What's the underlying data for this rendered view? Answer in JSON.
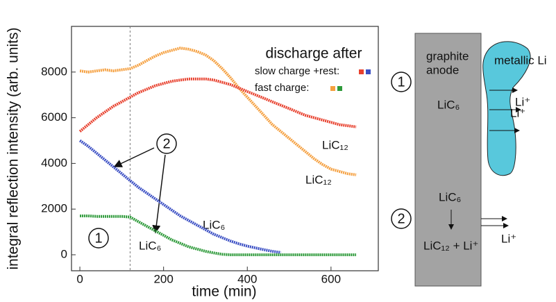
{
  "chart_data": {
    "type": "line",
    "xlabel": "time (min)",
    "ylabel": "integral reflection intensity (arb. units)",
    "xlim": [
      -20,
      713
    ],
    "ylim": [
      -700,
      10000
    ],
    "xticks": [
      0,
      200,
      400,
      600
    ],
    "yticks": [
      0,
      2000,
      4000,
      6000,
      8000
    ],
    "reference_line_x": 120,
    "x": [
      0,
      20,
      40,
      60,
      80,
      100,
      120,
      140,
      160,
      180,
      200,
      220,
      240,
      260,
      280,
      300,
      320,
      340,
      360,
      380,
      400,
      420,
      440,
      460,
      480,
      500,
      520,
      540,
      560,
      580,
      600,
      620,
      640,
      660
    ],
    "series": [
      {
        "color": "#f5a040",
        "values": [
          8050,
          8000,
          8050,
          8100,
          8050,
          8100,
          8150,
          8300,
          8500,
          8700,
          8850,
          8950,
          9050,
          9000,
          8900,
          8750,
          8500,
          8150,
          7750,
          7300,
          6900,
          6500,
          6100,
          5700,
          5400,
          5100,
          4800,
          4500,
          4200,
          3950,
          3750,
          3650,
          3550,
          3500
        ]
      },
      {
        "color": "#e8412e",
        "values": [
          5400,
          5700,
          6000,
          6250,
          6500,
          6700,
          6900,
          7100,
          7250,
          7400,
          7500,
          7600,
          7650,
          7700,
          7700,
          7700,
          7650,
          7550,
          7450,
          7300,
          7150,
          7000,
          6850,
          6700,
          6550,
          6400,
          6250,
          6100,
          6000,
          5900,
          5800,
          5700,
          5650,
          5600
        ]
      },
      {
        "color": "#3b4fc4",
        "values": [
          5000,
          4750,
          4450,
          4150,
          3850,
          3550,
          3250,
          2950,
          2700,
          2450,
          2200,
          1950,
          1700,
          1500,
          1300,
          1100,
          900,
          750,
          600,
          480,
          380,
          300,
          220,
          150,
          100,
          null,
          null,
          null,
          null,
          null,
          null,
          null,
          null,
          null
        ]
      },
      {
        "color": "#2e9a3a",
        "values": [
          1700,
          1700,
          1680,
          1680,
          1680,
          1680,
          1650,
          1450,
          1250,
          1050,
          850,
          650,
          500,
          350,
          250,
          150,
          80,
          20,
          0,
          0,
          0,
          0,
          0,
          0,
          0,
          0,
          0,
          0,
          0,
          0,
          0,
          0,
          0,
          0
        ]
      }
    ],
    "legend_title": "discharge after",
    "legend": [
      {
        "label": "slow charge +rest:",
        "colors": [
          "#e8412e",
          "#3b4fc4"
        ]
      },
      {
        "label": "fast charge:",
        "colors": [
          "#f5a040",
          "#2e9a3a"
        ]
      }
    ],
    "annotations": [
      "LiC₁₂",
      "LiC₁₂",
      "LiC₆",
      "LiC₆",
      "1",
      "2"
    ]
  },
  "diagram": {
    "step_markers": [
      "1",
      "2"
    ],
    "anode_label": [
      "graphite",
      "anode"
    ],
    "metal_label": "metallic Li",
    "top_ions": [
      "Li⁺",
      "Li⁺"
    ],
    "top_phase": "LiC₆",
    "bottom_phase": "LiC₆",
    "bottom_reaction": "LiC₁₂ + Li⁺",
    "bottom_ion": "Li⁺"
  }
}
